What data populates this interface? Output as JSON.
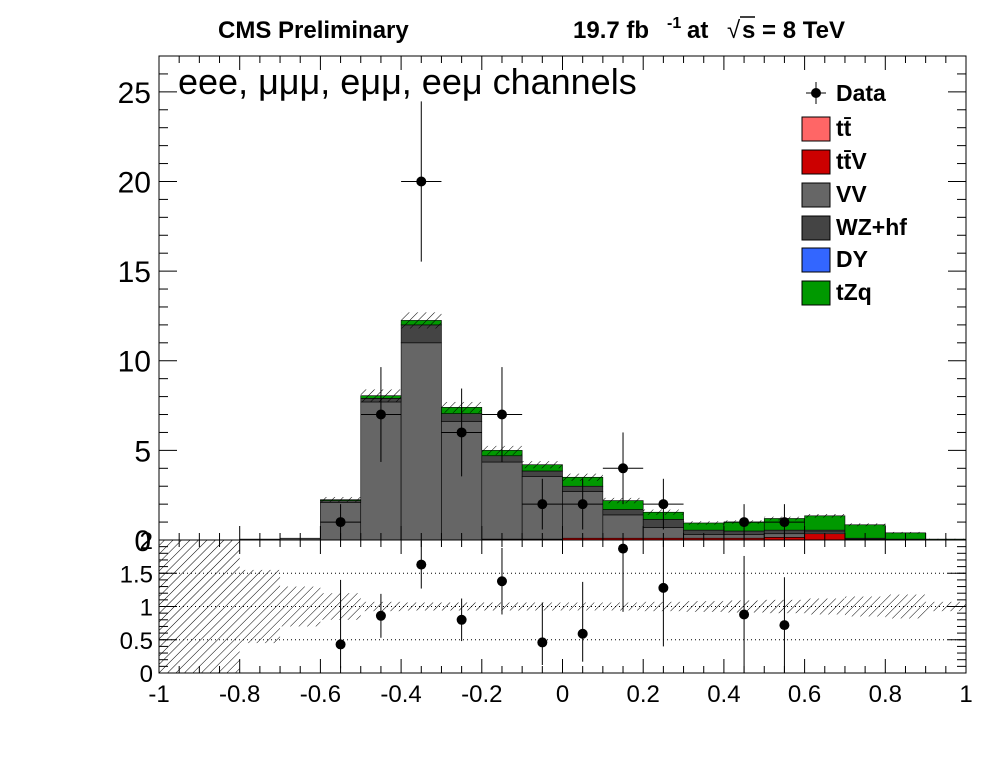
{
  "header": {
    "left": "CMS Preliminary",
    "lumi": "19.7 fb",
    "lumi_exp": "-1",
    "at": "at",
    "sqrt": "√",
    "energy": "s = 8 TeV"
  },
  "colors": {
    "tt": "#ff6666",
    "ttV": "#cc0000",
    "VV": "#666666",
    "WZhf": "#444444",
    "DY": "#3366ff",
    "tZq": "#009900",
    "data": "#000000"
  },
  "chart_data": [
    {
      "type": "bar",
      "stacked": true,
      "title": "eee, μμμ, eμμ, eeμ channels",
      "xlabel": "",
      "ylabel": "",
      "xlim": [
        -1,
        1
      ],
      "ylim": [
        0,
        27
      ],
      "yticks": [
        0,
        5,
        10,
        15,
        20,
        25
      ],
      "legend_position": "top-right",
      "bin_edges": [
        -1.0,
        -0.9,
        -0.8,
        -0.7,
        -0.6,
        -0.5,
        -0.4,
        -0.3,
        -0.2,
        -0.1,
        0.0,
        0.1,
        0.2,
        0.3,
        0.4,
        0.5,
        0.6,
        0.7,
        0.8,
        0.9,
        1.0
      ],
      "series": [
        {
          "name": "tt̄",
          "color_key": "tt",
          "values": [
            0,
            0,
            0,
            0,
            0,
            0,
            0,
            0,
            0,
            0,
            0,
            0,
            0,
            0,
            0,
            0,
            0,
            0,
            0,
            0
          ]
        },
        {
          "name": "tt̄V",
          "color_key": "ttV",
          "values": [
            0,
            0,
            0,
            0,
            0,
            0,
            0,
            0,
            0.05,
            0.05,
            0.1,
            0.1,
            0.1,
            0.1,
            0.1,
            0.15,
            0.35,
            0,
            0,
            0
          ]
        },
        {
          "name": "VV",
          "color_key": "VV",
          "values": [
            0,
            0,
            0.05,
            0.1,
            2.1,
            7.7,
            11.0,
            6.6,
            4.3,
            3.5,
            2.6,
            1.3,
            0.6,
            0.2,
            0.2,
            0.2,
            0.1,
            0.05,
            0.02,
            0
          ]
        },
        {
          "name": "WZ+hf",
          "color_key": "WZhf",
          "values": [
            0,
            0,
            0,
            0,
            0.1,
            0.2,
            1.0,
            0.45,
            0.35,
            0.3,
            0.3,
            0.3,
            0.45,
            0.25,
            0.2,
            0.2,
            0.1,
            0.05,
            0.03,
            0
          ]
        },
        {
          "name": "DY",
          "color_key": "DY",
          "values": [
            0,
            0,
            0,
            0,
            0,
            0,
            0,
            0,
            0,
            0,
            0,
            0,
            0,
            0,
            0,
            0,
            0,
            0,
            0,
            0
          ]
        },
        {
          "name": "tZq",
          "color_key": "tZq",
          "values": [
            0,
            0,
            0,
            0,
            0.05,
            0.15,
            0.25,
            0.35,
            0.3,
            0.35,
            0.5,
            0.5,
            0.4,
            0.4,
            0.5,
            0.65,
            0.8,
            0.75,
            0.35,
            0.05
          ]
        }
      ],
      "mc_unc": [
        0,
        0,
        0,
        0,
        0.15,
        0.35,
        0.45,
        0.3,
        0.25,
        0.2,
        0.2,
        0.15,
        0.15,
        0.1,
        0.1,
        0.1,
        0.1,
        0.08,
        0.05,
        0.02
      ],
      "data_points": {
        "name": "Data",
        "x": [
          -0.55,
          -0.45,
          -0.35,
          -0.25,
          -0.15,
          -0.05,
          0.05,
          0.15,
          0.25,
          0.45,
          0.55
        ],
        "y": [
          1,
          7,
          20,
          6,
          7,
          2,
          2,
          4,
          2,
          1,
          1
        ]
      }
    },
    {
      "type": "scatter",
      "xlabel": "",
      "ylabel": "",
      "xlim": [
        -1,
        1
      ],
      "ylim": [
        0,
        2
      ],
      "xticks": [
        -1,
        -0.8,
        -0.6,
        -0.4,
        -0.2,
        0,
        0.2,
        0.4,
        0.6,
        0.8,
        1
      ],
      "yticks": [
        0,
        0.5,
        1,
        1.5,
        2
      ],
      "ratio_points": {
        "x": [
          -0.55,
          -0.45,
          -0.35,
          -0.25,
          -0.15,
          -0.05,
          0.05,
          0.15,
          0.25,
          0.45,
          0.55
        ],
        "y": [
          0.43,
          0.86,
          1.63,
          0.8,
          1.38,
          0.46,
          0.59,
          1.87,
          1.28,
          0.88,
          0.72
        ],
        "err_low": [
          0.36,
          0.33,
          0.36,
          0.32,
          0.5,
          0.34,
          0.42,
          0.95,
          0.88,
          0.88,
          0.72
        ],
        "err_high": [
          0.97,
          0.33,
          0.36,
          0.32,
          0.5,
          0.6,
          0.78,
          0.95,
          0.88,
          0.88,
          0.72
        ]
      },
      "unc_band": [
        1.0,
        1.0,
        0.55,
        0.3,
        0.2,
        0.07,
        0.06,
        0.06,
        0.06,
        0.06,
        0.06,
        0.06,
        0.07,
        0.08,
        0.09,
        0.1,
        0.12,
        0.15,
        0.18,
        0.07
      ]
    }
  ],
  "legend": {
    "data": "Data",
    "tt": "tt̄",
    "ttV": "tt̄V",
    "VV": "VV",
    "WZhf": "WZ+hf",
    "DY": "DY",
    "tZq": "tZq"
  }
}
